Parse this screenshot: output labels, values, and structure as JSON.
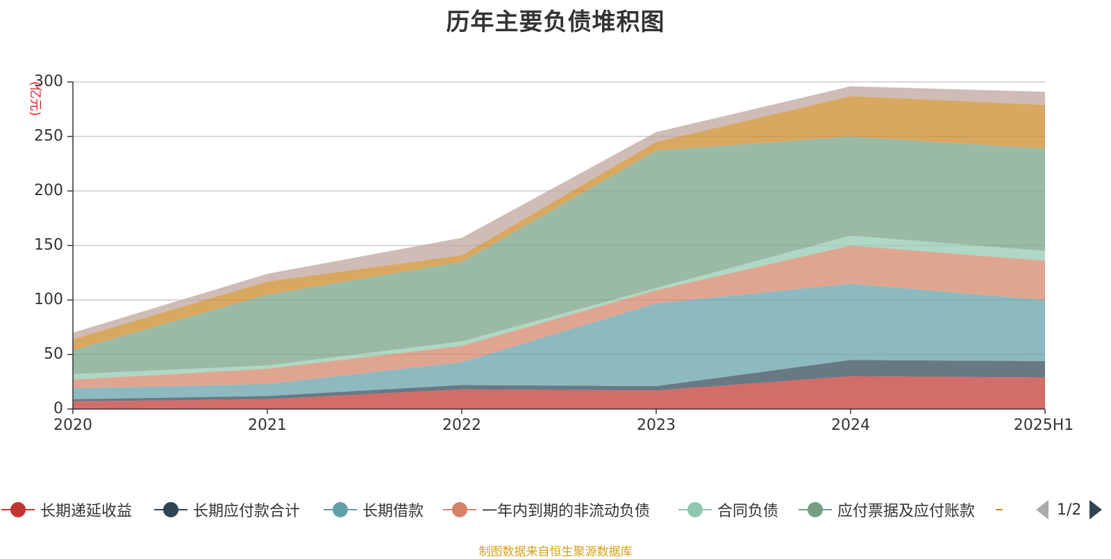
{
  "chart_data": {
    "type": "area",
    "stacked": true,
    "title": "历年主要负债堆积图",
    "y_unit_label": "(亿元)",
    "categories": [
      "2020",
      "2021",
      "2022",
      "2023",
      "2024",
      "2025H1"
    ],
    "ylim": [
      0,
      300
    ],
    "yticks": [
      0,
      50,
      100,
      150,
      200,
      250,
      300
    ],
    "grid": true,
    "legend_position": "bottom",
    "legend_page": "1/2",
    "series": [
      {
        "name": "长期递延收益",
        "color": "#c23531",
        "values": [
          7,
          9,
          18,
          17,
          30,
          29
        ]
      },
      {
        "name": "长期应付款合计",
        "color": "#2f4554",
        "values": [
          2,
          3,
          4,
          4,
          15,
          15
        ]
      },
      {
        "name": "长期借款",
        "color": "#61a0a8",
        "values": [
          10,
          11,
          21,
          76,
          70,
          56
        ]
      },
      {
        "name": "一年内到期的非流动负债",
        "color": "#d48265",
        "values": [
          8,
          14,
          15,
          12,
          35,
          36
        ]
      },
      {
        "name": "合同负债",
        "color": "#91c7ae",
        "values": [
          5,
          3,
          4,
          2,
          9,
          9
        ]
      },
      {
        "name": "应付票据及应付账款",
        "color": "#749f83",
        "values": [
          22,
          65,
          73,
          126,
          91,
          94
        ]
      },
      {
        "name": "",
        "color": "#ca8622",
        "values": [
          10,
          12,
          6,
          8,
          37,
          40
        ]
      },
      {
        "name": "",
        "color": "#bda29a",
        "values": [
          6,
          7,
          16,
          9,
          9,
          12
        ]
      }
    ]
  },
  "footer": {
    "source": "制图数据来自恒生聚源数据库"
  }
}
